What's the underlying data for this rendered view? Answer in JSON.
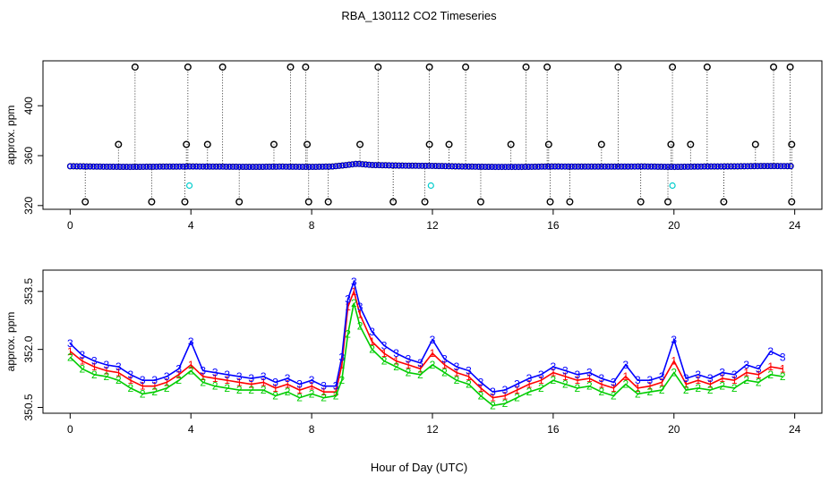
{
  "title": "RBA_130112  CO2 Timeseries",
  "xlabel": "Hour of Day (UTC)",
  "colors": {
    "black": "#000000",
    "blue": "#0000ff",
    "red": "#ff0000",
    "green": "#00cc00",
    "cyan": "#00cccc"
  },
  "chart_data": [
    {
      "type": "scatter",
      "ylabel": "approx. ppm",
      "xlim": [
        -0.9,
        24.9
      ],
      "ylim": [
        317,
        436
      ],
      "xticks": [
        0,
        4,
        8,
        12,
        16,
        20,
        24
      ],
      "yticks": [
        320,
        360,
        400
      ],
      "baseline": [
        [
          0,
          351.5
        ],
        [
          1,
          351.2
        ],
        [
          2,
          351.0
        ],
        [
          3,
          351.2
        ],
        [
          4,
          351.3
        ],
        [
          5,
          351.2
        ],
        [
          6,
          351.0
        ],
        [
          7,
          351.2
        ],
        [
          8,
          351.0
        ],
        [
          8.7,
          351.3
        ],
        [
          9.2,
          352.6
        ],
        [
          9.5,
          353.5
        ],
        [
          10,
          352.5
        ],
        [
          11,
          352.0
        ],
        [
          12,
          351.8
        ],
        [
          13,
          351.3
        ],
        [
          14,
          351.0
        ],
        [
          15,
          351.0
        ],
        [
          16,
          351.3
        ],
        [
          17,
          351.2
        ],
        [
          18,
          351.2
        ],
        [
          19,
          351.3
        ],
        [
          20,
          351.0
        ],
        [
          21,
          351.3
        ],
        [
          22,
          351.4
        ],
        [
          23,
          351.7
        ],
        [
          23.8,
          351.6
        ]
      ],
      "high_outliers": [
        [
          2.15,
          431
        ],
        [
          3.9,
          431
        ],
        [
          5.05,
          431
        ],
        [
          7.3,
          431
        ],
        [
          7.8,
          431
        ],
        [
          10.2,
          431
        ],
        [
          11.9,
          431
        ],
        [
          13.1,
          431
        ],
        [
          15.1,
          431
        ],
        [
          15.8,
          431
        ],
        [
          18.15,
          431
        ],
        [
          19.95,
          431
        ],
        [
          21.1,
          431
        ],
        [
          23.3,
          431
        ],
        [
          23.85,
          431
        ],
        [
          1.6,
          369
        ],
        [
          3.85,
          369
        ],
        [
          4.55,
          369
        ],
        [
          6.75,
          369
        ],
        [
          7.85,
          369
        ],
        [
          9.6,
          369
        ],
        [
          11.9,
          369
        ],
        [
          12.55,
          369
        ],
        [
          14.6,
          369
        ],
        [
          15.85,
          369
        ],
        [
          17.6,
          369
        ],
        [
          19.9,
          369
        ],
        [
          20.55,
          369
        ],
        [
          22.7,
          369
        ],
        [
          23.9,
          369
        ]
      ],
      "low_outliers": [
        [
          0.5,
          323
        ],
        [
          2.7,
          323
        ],
        [
          3.8,
          323
        ],
        [
          5.6,
          323
        ],
        [
          7.9,
          323
        ],
        [
          8.55,
          323
        ],
        [
          10.7,
          323
        ],
        [
          11.75,
          323
        ],
        [
          13.6,
          323
        ],
        [
          15.9,
          323
        ],
        [
          16.55,
          323
        ],
        [
          18.9,
          323
        ],
        [
          19.8,
          323
        ],
        [
          21.65,
          323
        ],
        [
          23.9,
          323
        ]
      ],
      "cyan_points": [
        [
          3.95,
          336
        ],
        [
          11.95,
          336
        ],
        [
          19.95,
          336
        ]
      ]
    },
    {
      "type": "line",
      "ylabel": "approx. ppm",
      "xlim": [
        -0.9,
        24.9
      ],
      "ylim": [
        350.35,
        354.05
      ],
      "xticks": [
        0,
        4,
        8,
        12,
        16,
        20,
        24
      ],
      "yticks": [
        350.5,
        352.0,
        353.5
      ],
      "series": [
        {
          "name": "1",
          "color": "#ff0000",
          "points": [
            [
              0,
              351.95
            ],
            [
              0.4,
              351.7
            ],
            [
              0.8,
              351.55
            ],
            [
              1.2,
              351.45
            ],
            [
              1.6,
              351.4
            ],
            [
              2.0,
              351.2
            ],
            [
              2.4,
              351.05
            ],
            [
              2.8,
              351.05
            ],
            [
              3.2,
              351.15
            ],
            [
              3.6,
              351.35
            ],
            [
              4.0,
              351.6
            ],
            [
              4.4,
              351.3
            ],
            [
              4.8,
              351.25
            ],
            [
              5.2,
              351.2
            ],
            [
              5.6,
              351.15
            ],
            [
              6.0,
              351.1
            ],
            [
              6.4,
              351.15
            ],
            [
              6.8,
              351.0
            ],
            [
              7.2,
              351.1
            ],
            [
              7.6,
              350.95
            ],
            [
              8.0,
              351.05
            ],
            [
              8.4,
              350.9
            ],
            [
              8.8,
              350.9
            ],
            [
              9.0,
              351.6
            ],
            [
              9.2,
              353.1
            ],
            [
              9.4,
              353.5
            ],
            [
              9.6,
              352.9
            ],
            [
              10.0,
              352.2
            ],
            [
              10.4,
              351.9
            ],
            [
              10.8,
              351.7
            ],
            [
              11.2,
              351.6
            ],
            [
              11.6,
              351.5
            ],
            [
              12.0,
              351.9
            ],
            [
              12.4,
              351.6
            ],
            [
              12.8,
              351.4
            ],
            [
              13.2,
              351.3
            ],
            [
              13.6,
              351.0
            ],
            [
              14.0,
              350.75
            ],
            [
              14.4,
              350.8
            ],
            [
              14.8,
              350.95
            ],
            [
              15.2,
              351.1
            ],
            [
              15.6,
              351.2
            ],
            [
              16.0,
              351.4
            ],
            [
              16.4,
              351.3
            ],
            [
              16.8,
              351.2
            ],
            [
              17.2,
              351.25
            ],
            [
              17.6,
              351.1
            ],
            [
              18.0,
              351.0
            ],
            [
              18.4,
              351.3
            ],
            [
              18.8,
              351.0
            ],
            [
              19.2,
              351.05
            ],
            [
              19.6,
              351.15
            ],
            [
              20.0,
              351.7
            ],
            [
              20.4,
              351.1
            ],
            [
              20.8,
              351.2
            ],
            [
              21.2,
              351.1
            ],
            [
              21.6,
              351.25
            ],
            [
              22.0,
              351.2
            ],
            [
              22.4,
              351.4
            ],
            [
              22.8,
              351.35
            ],
            [
              23.2,
              351.55
            ],
            [
              23.6,
              351.5
            ]
          ]
        },
        {
          "name": "2",
          "color": "#00cc00",
          "points": [
            [
              0,
              351.8
            ],
            [
              0.4,
              351.5
            ],
            [
              0.8,
              351.35
            ],
            [
              1.2,
              351.3
            ],
            [
              1.6,
              351.2
            ],
            [
              2.0,
              351.0
            ],
            [
              2.4,
              350.85
            ],
            [
              2.8,
              350.9
            ],
            [
              3.2,
              351.0
            ],
            [
              3.6,
              351.2
            ],
            [
              4.0,
              351.45
            ],
            [
              4.4,
              351.15
            ],
            [
              4.8,
              351.05
            ],
            [
              5.2,
              351.0
            ],
            [
              5.6,
              350.95
            ],
            [
              6.0,
              350.95
            ],
            [
              6.4,
              350.95
            ],
            [
              6.8,
              350.8
            ],
            [
              7.2,
              350.9
            ],
            [
              7.6,
              350.75
            ],
            [
              8.0,
              350.85
            ],
            [
              8.4,
              350.75
            ],
            [
              8.8,
              350.8
            ],
            [
              9.0,
              351.2
            ],
            [
              9.2,
              352.4
            ],
            [
              9.4,
              353.2
            ],
            [
              9.6,
              352.6
            ],
            [
              10.0,
              352.0
            ],
            [
              10.4,
              351.7
            ],
            [
              10.8,
              351.55
            ],
            [
              11.2,
              351.4
            ],
            [
              11.6,
              351.35
            ],
            [
              12.0,
              351.6
            ],
            [
              12.4,
              351.4
            ],
            [
              12.8,
              351.2
            ],
            [
              13.2,
              351.1
            ],
            [
              13.6,
              350.8
            ],
            [
              14.0,
              350.55
            ],
            [
              14.4,
              350.6
            ],
            [
              14.8,
              350.75
            ],
            [
              15.2,
              350.9
            ],
            [
              15.6,
              351.0
            ],
            [
              16.0,
              351.2
            ],
            [
              16.4,
              351.1
            ],
            [
              16.8,
              351.0
            ],
            [
              17.2,
              351.05
            ],
            [
              17.6,
              350.9
            ],
            [
              18.0,
              350.8
            ],
            [
              18.4,
              351.1
            ],
            [
              18.8,
              350.85
            ],
            [
              19.2,
              350.9
            ],
            [
              19.6,
              350.95
            ],
            [
              20.0,
              351.4
            ],
            [
              20.4,
              350.95
            ],
            [
              20.8,
              351.0
            ],
            [
              21.2,
              350.95
            ],
            [
              21.6,
              351.05
            ],
            [
              22.0,
              351.0
            ],
            [
              22.4,
              351.2
            ],
            [
              22.8,
              351.15
            ],
            [
              23.2,
              351.35
            ],
            [
              23.6,
              351.3
            ]
          ]
        },
        {
          "name": "3",
          "color": "#0000ff",
          "points": [
            [
              0,
              352.15
            ],
            [
              0.4,
              351.85
            ],
            [
              0.8,
              351.7
            ],
            [
              1.2,
              351.6
            ],
            [
              1.6,
              351.55
            ],
            [
              2.0,
              351.35
            ],
            [
              2.4,
              351.2
            ],
            [
              2.8,
              351.2
            ],
            [
              3.2,
              351.3
            ],
            [
              3.6,
              351.5
            ],
            [
              4.0,
              352.2
            ],
            [
              4.4,
              351.45
            ],
            [
              4.8,
              351.4
            ],
            [
              5.2,
              351.35
            ],
            [
              5.6,
              351.3
            ],
            [
              6.0,
              351.25
            ],
            [
              6.4,
              351.3
            ],
            [
              6.8,
              351.15
            ],
            [
              7.2,
              351.25
            ],
            [
              7.6,
              351.1
            ],
            [
              8.0,
              351.2
            ],
            [
              8.4,
              351.05
            ],
            [
              8.8,
              351.05
            ],
            [
              9.0,
              351.8
            ],
            [
              9.2,
              353.3
            ],
            [
              9.4,
              353.75
            ],
            [
              9.6,
              353.1
            ],
            [
              10.0,
              352.45
            ],
            [
              10.4,
              352.1
            ],
            [
              10.8,
              351.9
            ],
            [
              11.2,
              351.75
            ],
            [
              11.6,
              351.65
            ],
            [
              12.0,
              352.25
            ],
            [
              12.4,
              351.75
            ],
            [
              12.8,
              351.55
            ],
            [
              13.2,
              351.45
            ],
            [
              13.6,
              351.15
            ],
            [
              14.0,
              350.9
            ],
            [
              14.4,
              350.95
            ],
            [
              14.8,
              351.1
            ],
            [
              15.2,
              351.25
            ],
            [
              15.6,
              351.35
            ],
            [
              16.0,
              351.55
            ],
            [
              16.4,
              351.45
            ],
            [
              16.8,
              351.35
            ],
            [
              17.2,
              351.4
            ],
            [
              17.6,
              351.25
            ],
            [
              18.0,
              351.15
            ],
            [
              18.4,
              351.6
            ],
            [
              18.8,
              351.2
            ],
            [
              19.2,
              351.2
            ],
            [
              19.6,
              351.3
            ],
            [
              20.0,
              352.25
            ],
            [
              20.4,
              351.25
            ],
            [
              20.8,
              351.35
            ],
            [
              21.2,
              351.25
            ],
            [
              21.6,
              351.4
            ],
            [
              22.0,
              351.35
            ],
            [
              22.4,
              351.6
            ],
            [
              22.8,
              351.5
            ],
            [
              23.2,
              351.95
            ],
            [
              23.6,
              351.8
            ]
          ]
        }
      ]
    }
  ]
}
